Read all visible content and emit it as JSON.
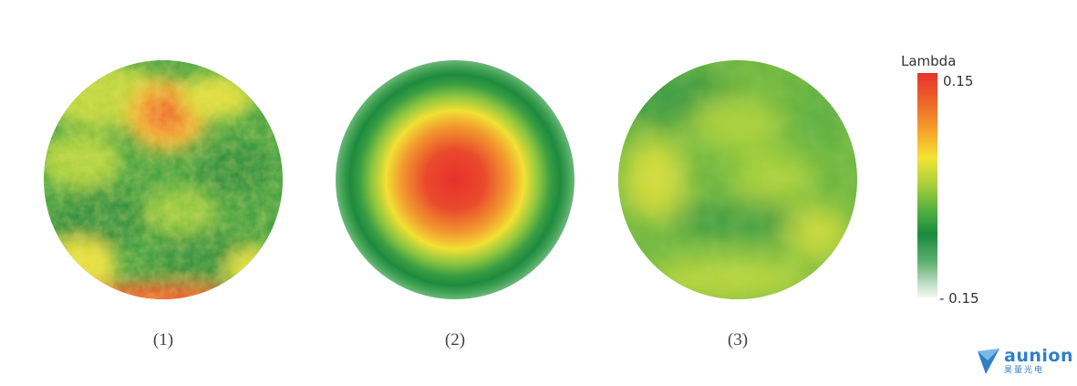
{
  "maps": [
    {
      "caption": "(1)"
    },
    {
      "caption": "(2)"
    },
    {
      "caption": "(3)"
    }
  ],
  "colorbar": {
    "title": "Lambda",
    "max_label": "0.15",
    "min_label": "- 0.15",
    "colors": [
      "#e8322c",
      "#f6a32b",
      "#f3e433",
      "#4fad3f",
      "#1a8a3e",
      "#f4f8f4"
    ]
  },
  "logo": {
    "name": "aunion",
    "subtitle": "昊量光电"
  }
}
